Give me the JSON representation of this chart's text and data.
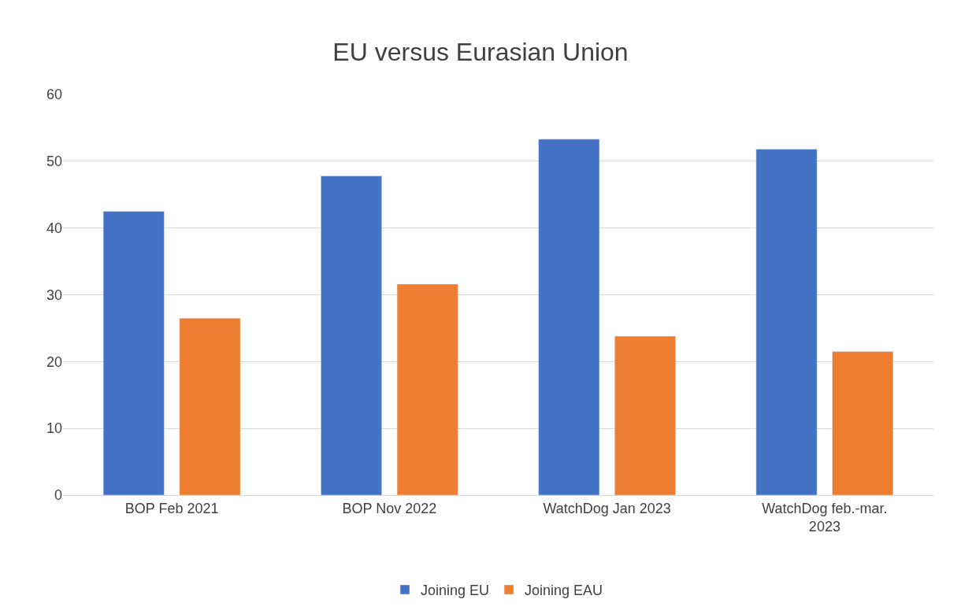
{
  "chart_data": {
    "type": "bar",
    "title": "EU versus Eurasian Union",
    "categories": [
      "BOP Feb 2021",
      "BOP Nov 2022",
      "WatchDog Jan 2023",
      "WatchDog feb.-mar.\n2023"
    ],
    "series": [
      {
        "name": "Joining EU",
        "color": "#4472c4",
        "values": [
          42.5,
          47.8,
          53.3,
          51.8
        ]
      },
      {
        "name": "Joining EAU",
        "color": "#ed7d31",
        "values": [
          26.5,
          31.6,
          23.8,
          21.5
        ]
      }
    ],
    "ylim": [
      0,
      60
    ],
    "yticks": [
      0,
      10,
      20,
      30,
      40,
      50,
      60
    ],
    "grid": "y",
    "legend": "bottom"
  }
}
